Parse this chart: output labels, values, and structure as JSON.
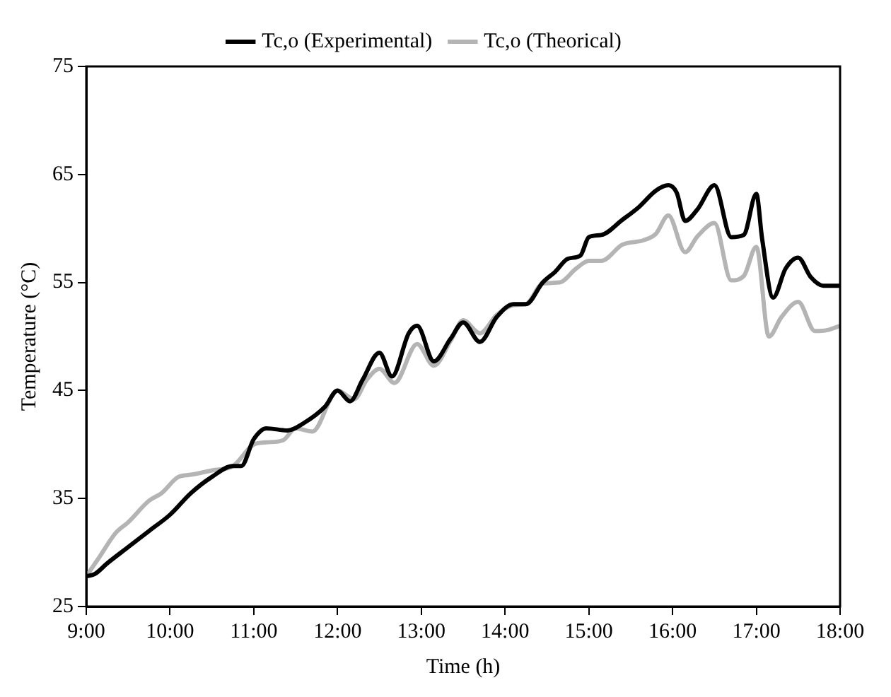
{
  "chart_data": {
    "type": "line",
    "xlabel": "Time (h)",
    "ylabel": "Temperature (°C)",
    "xlim": [
      9,
      18
    ],
    "xticks": [
      {
        "value": 9,
        "label": "9:00"
      },
      {
        "value": 10,
        "label": "10:00"
      },
      {
        "value": 11,
        "label": "11:00"
      },
      {
        "value": 12,
        "label": "12:00"
      },
      {
        "value": 13,
        "label": "13:00"
      },
      {
        "value": 14,
        "label": "14:00"
      },
      {
        "value": 15,
        "label": "15:00"
      },
      {
        "value": 16,
        "label": "16:00"
      },
      {
        "value": 17,
        "label": "17:00"
      },
      {
        "value": 18,
        "label": "18:00"
      }
    ],
    "ylim": [
      25,
      75
    ],
    "yticks": [
      25,
      35,
      45,
      55,
      65,
      75
    ],
    "grid": false,
    "legend": "top",
    "marker": "none",
    "line_style": "solid",
    "series": [
      {
        "name": "Tc,o (Experimental)",
        "color": "#000000",
        "x": [
          9.0,
          9.1,
          9.25,
          9.5,
          9.75,
          10.0,
          10.25,
          10.5,
          10.75,
          10.85,
          11.0,
          11.15,
          11.4,
          11.6,
          11.85,
          12.0,
          12.15,
          12.3,
          12.5,
          12.65,
          12.85,
          12.95,
          13.15,
          13.35,
          13.5,
          13.7,
          13.9,
          14.1,
          14.25,
          14.45,
          14.6,
          14.75,
          14.9,
          15.0,
          15.15,
          15.4,
          15.6,
          15.8,
          15.95,
          16.05,
          16.15,
          16.3,
          16.5,
          16.7,
          16.85,
          17.0,
          17.07,
          17.2,
          17.35,
          17.5,
          17.65,
          17.8,
          18.0
        ],
        "values": [
          27.8,
          28,
          29,
          30.5,
          32,
          33.5,
          35.5,
          37,
          38,
          38,
          40.5,
          41.5,
          41.3,
          42,
          43.5,
          45,
          44,
          46,
          48.5,
          46.3,
          50.3,
          51,
          47.7,
          49.8,
          51.3,
          49.5,
          51.8,
          53,
          53,
          55,
          56,
          57.2,
          57.5,
          59.2,
          59.4,
          60.8,
          62,
          63.5,
          64,
          63.3,
          60.7,
          61.8,
          64,
          59.2,
          59.4,
          63.2,
          59,
          53.6,
          56.3,
          57.3,
          55.5,
          54.7,
          54.7
        ]
      },
      {
        "name": "Tc,o (Theorical)",
        "color": "#b4b4b4",
        "x": [
          9.0,
          9.15,
          9.35,
          9.5,
          9.75,
          9.9,
          10.1,
          10.25,
          10.5,
          10.75,
          11.0,
          11.15,
          11.35,
          11.5,
          11.7,
          12.0,
          12.2,
          12.35,
          12.5,
          12.68,
          12.95,
          13.15,
          13.35,
          13.5,
          13.7,
          13.9,
          14.1,
          14.25,
          14.45,
          14.65,
          14.85,
          15.0,
          15.15,
          15.4,
          15.65,
          15.8,
          15.95,
          16.15,
          16.3,
          16.5,
          16.7,
          16.85,
          17.0,
          17.15,
          17.3,
          17.5,
          17.7,
          17.85,
          18.0
        ],
        "values": [
          27.8,
          29.5,
          31.8,
          32.8,
          34.8,
          35.5,
          37,
          37.2,
          37.6,
          38,
          40,
          40.2,
          40.4,
          41.5,
          41.2,
          45,
          44.2,
          46,
          47,
          45.7,
          49.3,
          47.3,
          49.6,
          51.5,
          50.3,
          52,
          52.9,
          53,
          54.9,
          55,
          56.3,
          57,
          57,
          58.5,
          58.9,
          59.5,
          61.2,
          57.8,
          59.3,
          60.5,
          55.2,
          55.6,
          58.3,
          50,
          51.8,
          53.2,
          50.5,
          50.6,
          51
        ]
      }
    ]
  }
}
